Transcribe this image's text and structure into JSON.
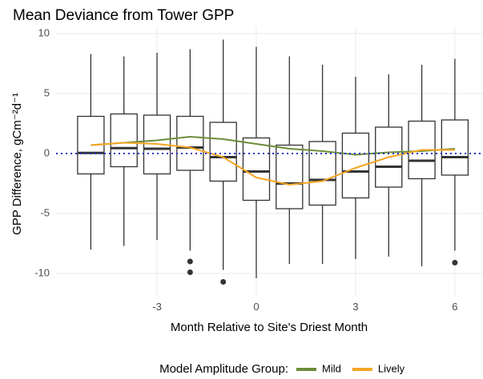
{
  "chart_data": {
    "type": "box",
    "title": "Mean Deviance from Tower GPP",
    "x_label": "Month Relative to Site's Driest Month",
    "y_label": "GPP Difference, gCm⁻²d⁻¹",
    "legend_title": "Model Amplitude Group:",
    "x": [
      -5,
      -4,
      -3,
      -2,
      -1,
      0,
      1,
      2,
      3,
      4,
      5,
      6
    ],
    "boxes": {
      "whisker_high": [
        8.3,
        8.1,
        8.4,
        8.7,
        9.5,
        8.9,
        8.1,
        7.4,
        6.4,
        6.6,
        7.4,
        7.9
      ],
      "q3": [
        3.1,
        3.3,
        3.2,
        3.1,
        2.6,
        1.3,
        0.7,
        1.0,
        1.7,
        2.2,
        2.7,
        2.8
      ],
      "median": [
        0.05,
        0.45,
        0.4,
        0.5,
        -0.3,
        -1.5,
        -2.5,
        -2.2,
        -1.5,
        -1.1,
        -0.6,
        -0.3
      ],
      "q1": [
        -1.7,
        -1.1,
        -1.7,
        -1.4,
        -2.3,
        -3.9,
        -4.6,
        -4.3,
        -3.7,
        -2.8,
        -2.1,
        -1.8
      ],
      "whisker_low": [
        -8.0,
        -7.7,
        -7.2,
        -8.1,
        -9.7,
        -10.4,
        -9.2,
        -9.2,
        -8.8,
        -8.6,
        -9.4,
        -8.1
      ],
      "outliers": [
        [],
        [],
        [],
        [
          -9.0,
          -9.9
        ],
        [
          -10.7
        ],
        [],
        [],
        [],
        [],
        [],
        [],
        [
          -9.1
        ]
      ],
      "color": "#333333"
    },
    "series": [
      {
        "name": "Mild",
        "color": "#6b8e3a",
        "values": [
          0.7,
          0.9,
          1.1,
          1.4,
          1.2,
          0.8,
          0.4,
          0.2,
          -0.1,
          0.1,
          0.2,
          0.4
        ]
      },
      {
        "name": "Lively",
        "color": "#f5a623",
        "values": [
          0.7,
          0.9,
          0.8,
          0.5,
          -0.3,
          -2.0,
          -2.6,
          -2.3,
          -1.2,
          -0.3,
          0.3,
          0.3
        ]
      }
    ],
    "hline": 0,
    "hline_color": "#2233cc",
    "xlim": [
      -6.05,
      6.85
    ],
    "ylim": [
      -11.9,
      10.6
    ],
    "xticks": [
      -3,
      0,
      3,
      6
    ],
    "yticks": [
      -10,
      -5,
      0,
      5,
      10
    ],
    "grid": true,
    "legend_position": "bottom"
  }
}
